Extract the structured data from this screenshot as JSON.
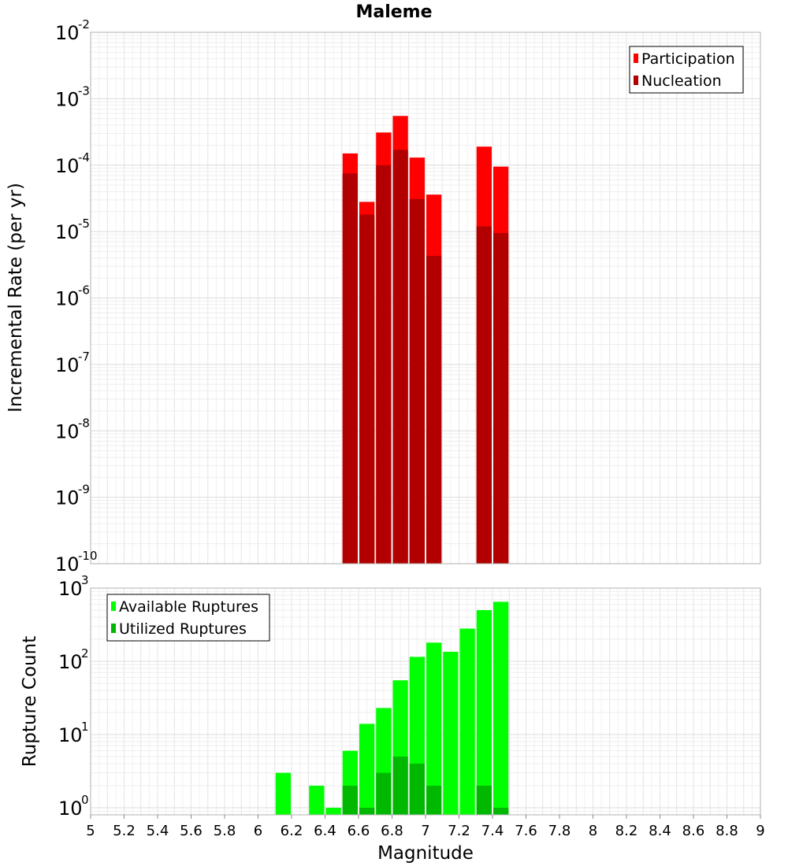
{
  "chart_data": [
    {
      "type": "bar",
      "title": "Maleme",
      "ylabel": "Incremental Rate (per yr)",
      "yscale": "log",
      "ylim": [
        1e-10,
        0.01
      ],
      "y_ticks": [
        {
          "base": "10",
          "exp": "-10"
        },
        {
          "base": "10",
          "exp": "-9"
        },
        {
          "base": "10",
          "exp": "-8"
        },
        {
          "base": "10",
          "exp": "-7"
        },
        {
          "base": "10",
          "exp": "-6"
        },
        {
          "base": "10",
          "exp": "-5"
        },
        {
          "base": "10",
          "exp": "-4"
        },
        {
          "base": "10",
          "exp": "-3"
        },
        {
          "base": "10",
          "exp": "-2"
        }
      ],
      "x": [
        6.55,
        6.65,
        6.75,
        6.85,
        6.95,
        7.05,
        7.35,
        7.45
      ],
      "bin_width": 0.1,
      "legend_position": "top-right",
      "series": [
        {
          "name": "Participation",
          "color": "#ff0000",
          "values": [
            0.00015,
            2.8e-05,
            0.00031,
            0.00055,
            0.00013,
            3.6e-05,
            0.00019,
            9.5e-05
          ]
        },
        {
          "name": "Nucleation",
          "color": "#b20000",
          "values": [
            7.5e-05,
            1.8e-05,
            0.0001,
            0.00017,
            3.1e-05,
            4.3e-06,
            1.2e-05,
            9.5e-06
          ]
        }
      ]
    },
    {
      "type": "bar",
      "ylabel": "Rupture Count",
      "yscale": "log",
      "ylim": [
        0.8,
        1000
      ],
      "y_ticks": [
        {
          "base": "10",
          "exp": "0",
          "value": 1
        },
        {
          "base": "10",
          "exp": "1",
          "value": 10
        },
        {
          "base": "10",
          "exp": "2",
          "value": 100
        },
        {
          "base": "10",
          "exp": "3",
          "value": 1000
        }
      ],
      "xlabel": "Magnitude",
      "xlim": [
        5,
        9
      ],
      "x_ticks": [
        "5",
        "5.2",
        "5.4",
        "5.6",
        "5.8",
        "6",
        "6.2",
        "6.4",
        "6.6",
        "6.8",
        "7",
        "7.2",
        "7.4",
        "7.6",
        "7.8",
        "8",
        "8.2",
        "8.4",
        "8.6",
        "8.8",
        "9"
      ],
      "x": [
        6.15,
        6.35,
        6.45,
        6.55,
        6.65,
        6.75,
        6.85,
        6.95,
        7.05,
        7.15,
        7.25,
        7.35,
        7.45
      ],
      "bin_width": 0.1,
      "legend_position": "top-left",
      "series": [
        {
          "name": "Available Ruptures",
          "color": "#00ff00",
          "values": [
            3,
            2,
            1,
            6,
            14,
            23,
            55,
            115,
            180,
            135,
            280,
            500,
            650
          ]
        },
        {
          "name": "Utilized Ruptures",
          "color": "#00b800",
          "values": [
            null,
            null,
            null,
            2,
            1,
            3,
            5,
            4,
            2,
            null,
            null,
            2,
            1
          ]
        }
      ]
    }
  ]
}
